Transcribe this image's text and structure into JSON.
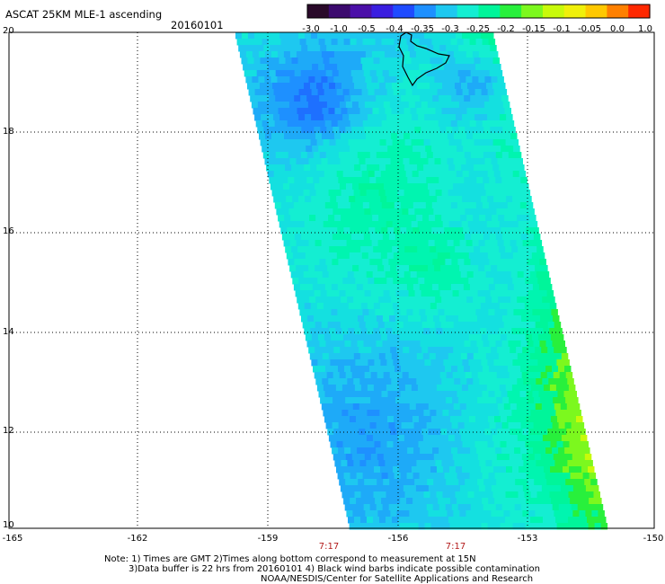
{
  "header": {
    "title": "ASCAT 25KM MLE-1 ascending",
    "date": "20160101"
  },
  "colorbar": {
    "labels": [
      "-3.0",
      "-1.0",
      "-0.5",
      "-0.4",
      "-0.35",
      "-0.3",
      "-0.25",
      "-0.2",
      "-0.15",
      "-0.1",
      "-0.05",
      "0.0",
      "1.0"
    ],
    "colors": [
      "#2a0a2a",
      "#3c0a6e",
      "#4b0fa8",
      "#3a1ee0",
      "#1f4bff",
      "#1e90ff",
      "#1ec8f0",
      "#14eed2",
      "#00f59a",
      "#28f03c",
      "#7cf81e",
      "#c8fa0a",
      "#f0f00a",
      "#ffc800",
      "#ff8000",
      "#ff2800"
    ]
  },
  "axes": {
    "latitudes": [
      "20",
      "18",
      "16",
      "14",
      "12",
      "10"
    ],
    "longitudes": [
      "-165",
      "-162",
      "-159",
      "-156",
      "-153",
      "-150"
    ]
  },
  "times": [
    "7:17",
    "7:17"
  ],
  "notes": {
    "line1": "Note: 1) Times are GMT 2)Times along bottom correspond to measurement at 15N",
    "line2": "3)Data buffer is 22 hrs from 20160101 4) Black wind barbs indicate possible contamination",
    "line3": "NOAA/NESDIS/Center for Satellite Applications and Research"
  }
}
